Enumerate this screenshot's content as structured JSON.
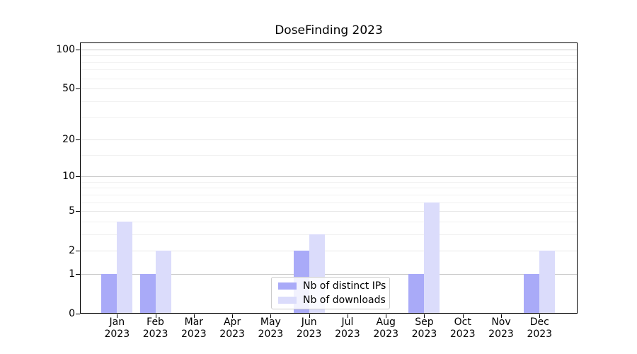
{
  "chart_data": {
    "type": "bar",
    "title": "DoseFinding 2023",
    "categories": [
      {
        "label": "Jan",
        "sub": "2023"
      },
      {
        "label": "Feb",
        "sub": "2023"
      },
      {
        "label": "Mar",
        "sub": "2023"
      },
      {
        "label": "Apr",
        "sub": "2023"
      },
      {
        "label": "May",
        "sub": "2023"
      },
      {
        "label": "Jun",
        "sub": "2023"
      },
      {
        "label": "Jul",
        "sub": "2023"
      },
      {
        "label": "Aug",
        "sub": "2023"
      },
      {
        "label": "Sep",
        "sub": "2023"
      },
      {
        "label": "Oct",
        "sub": "2023"
      },
      {
        "label": "Nov",
        "sub": "2023"
      },
      {
        "label": "Dec",
        "sub": "2023"
      }
    ],
    "series": [
      {
        "name": "Nb of distinct IPs",
        "color": "#a9aaf8",
        "values": [
          1,
          1,
          0,
          0,
          0,
          2,
          0,
          0,
          1,
          0,
          0,
          1
        ]
      },
      {
        "name": "Nb of downloads",
        "color": "#dbdcfb",
        "values": [
          4,
          2,
          0,
          0,
          0,
          3,
          0,
          0,
          6,
          0,
          0,
          2
        ]
      }
    ],
    "xlabel": "",
    "ylabel": "",
    "yscale": "log1p",
    "ylim": [
      0,
      114
    ],
    "yticks": [
      0,
      1,
      2,
      5,
      10,
      20,
      50,
      100
    ],
    "minor_yticks": [
      3,
      4,
      6,
      7,
      8,
      9,
      15,
      30,
      40,
      60,
      70,
      80,
      90
    ],
    "grid": true,
    "legend_position": "inside-bottom-center",
    "colors": {
      "grid_decade": "#c9c9c9",
      "grid_major": "#e7e7e7",
      "grid_minor": "#f1f1f1",
      "spine": "#000000",
      "legend_border": "#cccccc"
    }
  }
}
